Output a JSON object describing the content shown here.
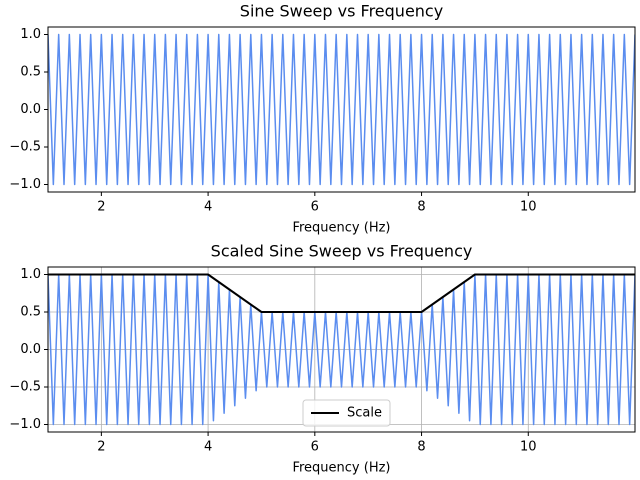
{
  "chart_data": [
    {
      "type": "line",
      "title": "Sine Sweep vs Frequency",
      "x_label": "Frequency (Hz)",
      "x": [
        1,
        1.1,
        1.2,
        1.3,
        1.4,
        1.5,
        1.6,
        1.7,
        1.8,
        1.9,
        2,
        2.1,
        2.2,
        2.3,
        2.4,
        2.5,
        2.6,
        2.7,
        2.8,
        2.9,
        3,
        3.1,
        3.2,
        3.3,
        3.4,
        3.5,
        3.6,
        3.7,
        3.8,
        3.9,
        4,
        4.1,
        4.2,
        4.3,
        4.4,
        4.5,
        4.6,
        4.7,
        4.8,
        4.9,
        5,
        5.1,
        5.2,
        5.3,
        5.4,
        5.5,
        5.6,
        5.7,
        5.8,
        5.9,
        6,
        6.1,
        6.2,
        6.3,
        6.4,
        6.5,
        6.6,
        6.7,
        6.8,
        6.9,
        7,
        7.1,
        7.2,
        7.3,
        7.4,
        7.5,
        7.6,
        7.7,
        7.8,
        7.9,
        8,
        8.1,
        8.2,
        8.3,
        8.4,
        8.5,
        8.6,
        8.7,
        8.8,
        8.9,
        9,
        9.1,
        9.2,
        9.3,
        9.4,
        9.5,
        9.6,
        9.7,
        9.8,
        9.9,
        10,
        10.1,
        10.2,
        10.3,
        10.4,
        10.5,
        10.6,
        10.7,
        10.8,
        10.9,
        11,
        11.1,
        11.2,
        11.3,
        11.4,
        11.5,
        11.6,
        11.7,
        11.8,
        11.9,
        12
      ],
      "series": [
        {
          "color": "#5b8def",
          "values": [
            1,
            -1,
            1,
            -1,
            1,
            -1,
            1,
            -1,
            1,
            -1,
            1,
            -1,
            1,
            -1,
            1,
            -1,
            1,
            -1,
            1,
            -1,
            1,
            -1,
            1,
            -1,
            1,
            -1,
            1,
            -1,
            1,
            -1,
            1,
            -1,
            1,
            -1,
            1,
            -1,
            1,
            -1,
            1,
            -1,
            1,
            -1,
            1,
            -1,
            1,
            -1,
            1,
            -1,
            1,
            -1,
            1,
            -1,
            1,
            -1,
            1,
            -1,
            1,
            -1,
            1,
            -1,
            1,
            -1,
            1,
            -1,
            1,
            -1,
            1,
            -1,
            1,
            -1,
            1,
            -1,
            1,
            -1,
            1,
            -1,
            1,
            -1,
            1,
            -1,
            1,
            -1,
            1,
            -1,
            1,
            -1,
            1,
            -1,
            1,
            -1,
            1,
            -1,
            1,
            -1,
            1,
            -1,
            1,
            -1,
            1,
            -1,
            1,
            -1,
            1,
            -1,
            1,
            -1,
            1,
            -1,
            1,
            -1,
            1
          ]
        }
      ],
      "xlim": [
        1,
        12
      ],
      "xticks": [
        2,
        4,
        6,
        8,
        10
      ],
      "ylim": [
        -1.1,
        1.1
      ],
      "yticks": [
        {
          "value": -1,
          "label": "−1.0"
        },
        {
          "value": -0.5,
          "label": "−0.5"
        },
        {
          "value": 0,
          "label": "0.0"
        },
        {
          "value": 0.5,
          "label": "0.5"
        },
        {
          "value": 1,
          "label": "1.0"
        }
      ],
      "grid": false
    },
    {
      "type": "line",
      "title": "Scaled Sine Sweep vs Frequency",
      "x_label": "Frequency (Hz)",
      "x": [
        1,
        1.1,
        1.2,
        1.3,
        1.4,
        1.5,
        1.6,
        1.7,
        1.8,
        1.9,
        2,
        2.1,
        2.2,
        2.3,
        2.4,
        2.5,
        2.6,
        2.7,
        2.8,
        2.9,
        3,
        3.1,
        3.2,
        3.3,
        3.4,
        3.5,
        3.6,
        3.7,
        3.8,
        3.9,
        4,
        4.1,
        4.2,
        4.3,
        4.4,
        4.5,
        4.6,
        4.7,
        4.8,
        4.9,
        5,
        5.1,
        5.2,
        5.3,
        5.4,
        5.5,
        5.6,
        5.7,
        5.8,
        5.9,
        6,
        6.1,
        6.2,
        6.3,
        6.4,
        6.5,
        6.6,
        6.7,
        6.8,
        6.9,
        7,
        7.1,
        7.2,
        7.3,
        7.4,
        7.5,
        7.6,
        7.7,
        7.8,
        7.9,
        8,
        8.1,
        8.2,
        8.3,
        8.4,
        8.5,
        8.6,
        8.7,
        8.8,
        8.9,
        9,
        9.1,
        9.2,
        9.3,
        9.4,
        9.5,
        9.6,
        9.7,
        9.8,
        9.9,
        10,
        10.1,
        10.2,
        10.3,
        10.4,
        10.5,
        10.6,
        10.7,
        10.8,
        10.9,
        11,
        11.1,
        11.2,
        11.3,
        11.4,
        11.5,
        11.6,
        11.7,
        11.8,
        11.9,
        12
      ],
      "series": [
        {
          "color": "#5b8def",
          "values": [
            1,
            -1,
            1,
            -1,
            1,
            -1,
            1,
            -1,
            1,
            -1,
            1,
            -1,
            1,
            -1,
            1,
            -1,
            1,
            -1,
            1,
            -1,
            1,
            -1,
            1,
            -1,
            1,
            -1,
            1,
            -1,
            1,
            -1,
            1,
            -0.95,
            0.9,
            -0.85,
            0.8,
            -0.75,
            0.7,
            -0.65,
            0.6,
            -0.55,
            0.5,
            -0.5,
            0.5,
            -0.5,
            0.5,
            -0.5,
            0.5,
            -0.5,
            0.5,
            -0.5,
            0.5,
            -0.5,
            0.5,
            -0.5,
            0.5,
            -0.5,
            0.5,
            -0.5,
            0.5,
            -0.5,
            0.5,
            -0.5,
            0.5,
            -0.5,
            0.5,
            -0.5,
            0.5,
            -0.5,
            0.5,
            -0.5,
            0.5,
            -0.55,
            0.6,
            -0.65,
            0.7,
            -0.75,
            0.8,
            -0.85,
            0.9,
            -0.95,
            1,
            -1,
            1,
            -1,
            1,
            -1,
            1,
            -1,
            1,
            -1,
            1,
            -1,
            1,
            -1,
            1,
            -1,
            1,
            -1,
            1,
            -1,
            1,
            -1,
            1,
            -1,
            1,
            -1,
            1,
            -1,
            1,
            -1,
            1
          ]
        },
        {
          "name": "Scale",
          "color": "#000000",
          "x": [
            1,
            4,
            5,
            8,
            9,
            12
          ],
          "values": [
            1,
            1,
            0.5,
            0.5,
            1,
            1
          ]
        }
      ],
      "xlim": [
        1,
        12
      ],
      "xticks": [
        2,
        4,
        6,
        8,
        10
      ],
      "ylim": [
        -1.1,
        1.1
      ],
      "yticks": [
        {
          "value": -1,
          "label": "−1.0"
        },
        {
          "value": -0.5,
          "label": "−0.5"
        },
        {
          "value": 0,
          "label": "0.0"
        },
        {
          "value": 0.5,
          "label": "0.5"
        },
        {
          "value": 1,
          "label": "1.0"
        }
      ],
      "grid": true,
      "legend": "lower center"
    }
  ]
}
